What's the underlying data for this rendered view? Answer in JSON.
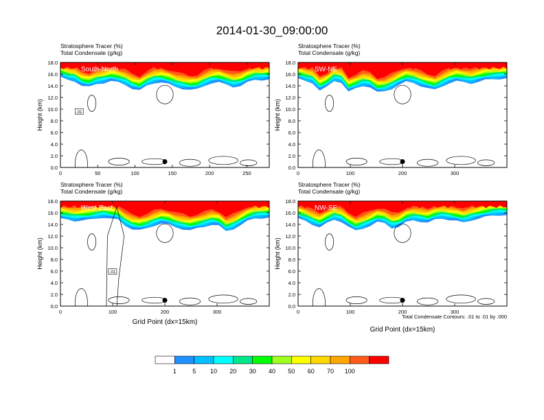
{
  "figure": {
    "title": "2014-01-30_09:00:00",
    "footnote": "Total Condensate Contours: .01 to .01 by .000"
  },
  "colors": {
    "tracer_levels": [
      "#ffffff",
      "#1e90ff",
      "#00bfff",
      "#00ffff",
      "#00e68a",
      "#00ff00",
      "#a0ff20",
      "#ffff00",
      "#ffd700",
      "#ffa500",
      "#ff5a1a",
      "#ff0000"
    ],
    "colorbar_fill": [
      "#ffffff",
      "#1e90ff",
      "#00bfff",
      "#00ffff",
      "#00e68a",
      "#00ff00",
      "#a0ff20",
      "#ffff00",
      "#ffd700",
      "#ffa500",
      "#ff5a1a",
      "#ff0000"
    ]
  },
  "colorbar": {
    "labels": [
      "1",
      "5",
      "10",
      "20",
      "30",
      "40",
      "50",
      "60",
      "70",
      "100"
    ]
  },
  "chart_data": [
    {
      "type": "heatmap",
      "panel": "South-North",
      "header_line1": "Stratosphere Tracer   (%)",
      "header_line2": "Total Condensate   (g/kg)",
      "label": "South-North",
      "ylabel": "Height (km)",
      "xlabel": "",
      "ylim": [
        0,
        18
      ],
      "xlim": [
        0,
        280
      ],
      "xticks": [
        0,
        50,
        100,
        150,
        200,
        250
      ],
      "yticks": [
        "0.0",
        "2.0",
        "4.0",
        "6.0",
        "8.0",
        "10.0",
        "12.0",
        "14.0",
        "16.0",
        "18.0"
      ],
      "marker": {
        "x": 140,
        "y": 1.0
      },
      "contour_label": ".01",
      "tracer_base_km": [
        15.5,
        15.0,
        14.8,
        14.0,
        13.8,
        14.3,
        14.5,
        14.8,
        14.6,
        14.2,
        13.5,
        13.2,
        14.0,
        14.5,
        14.6,
        14.3,
        13.8,
        13.5,
        13.3,
        13.4,
        14.0,
        14.5,
        14.6,
        14.2,
        13.8,
        14.0,
        14.6,
        15.0,
        15.0,
        15.1
      ]
    },
    {
      "type": "heatmap",
      "panel": "SW-NE",
      "header_line1": "Stratosphere Tracer   (%)",
      "header_line2": "Total Condensate   (g/kg)",
      "label": "SW-NE",
      "ylabel": "Height (km)",
      "xlabel": "",
      "ylim": [
        0,
        18
      ],
      "xlim": [
        0,
        400
      ],
      "xticks": [
        0,
        100,
        200,
        300
      ],
      "yticks": [
        "0.0",
        "2.0",
        "4.0",
        "6.0",
        "8.0",
        "10.0",
        "12.0",
        "14.0",
        "16.0",
        "18.0"
      ],
      "marker": {
        "x": 200,
        "y": 1.0
      },
      "contour_label": "",
      "tracer_base_km": [
        15.2,
        14.8,
        14.5,
        13.2,
        13.8,
        14.8,
        14.6,
        13.0,
        13.5,
        14.0,
        13.8,
        12.9,
        13.0,
        13.5,
        14.2,
        14.7,
        14.5,
        14.0,
        13.6,
        13.3,
        13.9,
        14.5,
        14.8,
        14.6,
        14.4,
        14.7,
        15.0,
        15.1,
        15.2,
        15.3
      ]
    },
    {
      "type": "heatmap",
      "panel": "West-East",
      "header_line1": "Stratosphere Tracer   (%)",
      "header_line2": "Total Condensate   (g/kg)",
      "label": "West-East",
      "ylabel": "Height (km)",
      "xlabel": "Grid Point (dx=15km)",
      "ylim": [
        0,
        18
      ],
      "xlim": [
        0,
        400
      ],
      "xticks": [
        0,
        100,
        200,
        300
      ],
      "yticks": [
        "0.0",
        "2.0",
        "4.0",
        "6.0",
        "8.0",
        "10.0",
        "12.0",
        "14.0",
        "16.0",
        "18.0"
      ],
      "marker": {
        "x": 200,
        "y": 1.0
      },
      "contour_label": ".01",
      "tracer_base_km": [
        15.0,
        14.8,
        14.6,
        14.7,
        14.8,
        15.0,
        15.2,
        15.0,
        14.8,
        13.8,
        13.2,
        13.0,
        13.3,
        13.8,
        14.2,
        14.0,
        13.5,
        13.2,
        13.0,
        13.3,
        13.6,
        14.0,
        13.8,
        12.8,
        13.2,
        13.9,
        14.6,
        15.0,
        15.1,
        15.2
      ]
    },
    {
      "type": "heatmap",
      "panel": "NW-SE",
      "header_line1": "Stratosphere Tracer   (%)",
      "header_line2": "Total Condensate   (g/kg)",
      "label": "NW-SE",
      "ylabel": "Height (km)",
      "xlabel": "Grid Point (dx=15km)",
      "ylim": [
        0,
        18
      ],
      "xlim": [
        0,
        400
      ],
      "xticks": [
        0,
        100,
        200,
        300
      ],
      "yticks": [
        "0.0",
        "2.0",
        "4.0",
        "6.0",
        "8.0",
        "10.0",
        "12.0",
        "14.0",
        "16.0",
        "18.0"
      ],
      "marker": {
        "x": 200,
        "y": 1.0
      },
      "contour_label": "",
      "tracer_base_km": [
        15.0,
        14.6,
        14.0,
        13.5,
        14.2,
        14.8,
        14.5,
        13.6,
        12.9,
        13.3,
        13.8,
        14.4,
        14.2,
        13.4,
        13.6,
        14.4,
        14.7,
        14.5,
        14.3,
        14.8,
        15.0,
        14.8,
        14.6,
        14.3,
        14.7,
        15.0,
        15.3,
        15.5,
        15.6,
        15.6
      ]
    }
  ]
}
